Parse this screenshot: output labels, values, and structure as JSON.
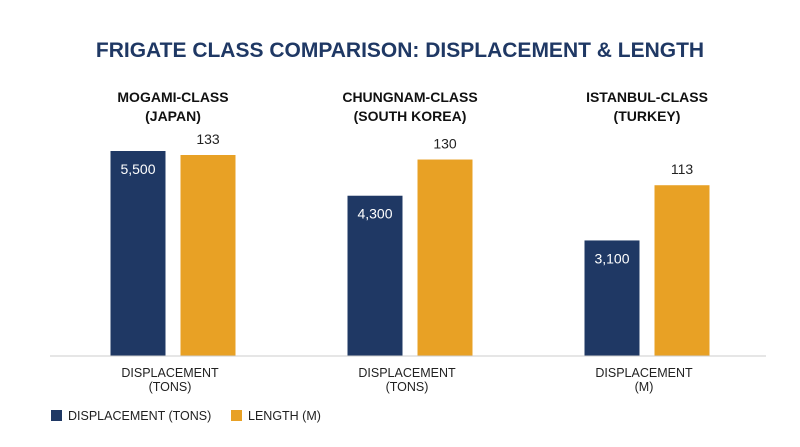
{
  "chart_data": {
    "type": "bar",
    "title": "FRIGATE CLASS COMPARISON: DISPLACEMENT & LENGTH",
    "groups": [
      {
        "label_lines": [
          "MOGAMI-CLASS",
          "(JAPAN)"
        ],
        "axis_label_lines": [
          "DISPLACEMENT",
          "(TONS)"
        ]
      },
      {
        "label_lines": [
          "CHUNGNAM-CLASS",
          "(SOUTH KOREA)"
        ],
        "axis_label_lines": [
          "DISPLACEMENT",
          "(TONS)"
        ]
      },
      {
        "label_lines": [
          "ISTANBUL-CLASS",
          "(TURKEY)"
        ],
        "axis_label_lines": [
          "DISPLACEMENT",
          "(M)"
        ]
      }
    ],
    "series": [
      {
        "name": "DISPLACEMENT (TONS)",
        "color": "#1f3864",
        "values": [
          5500,
          4300,
          3100
        ],
        "value_labels": [
          "5,500",
          "4,300",
          "3,100"
        ]
      },
      {
        "name": "LENGTH (M)",
        "color": "#e8a125",
        "values": [
          133,
          130,
          113
        ],
        "value_labels": [
          "133",
          "130",
          "113"
        ]
      }
    ],
    "axis_color": "#cccccc",
    "grid": false,
    "legend_position": "bottom-left"
  }
}
